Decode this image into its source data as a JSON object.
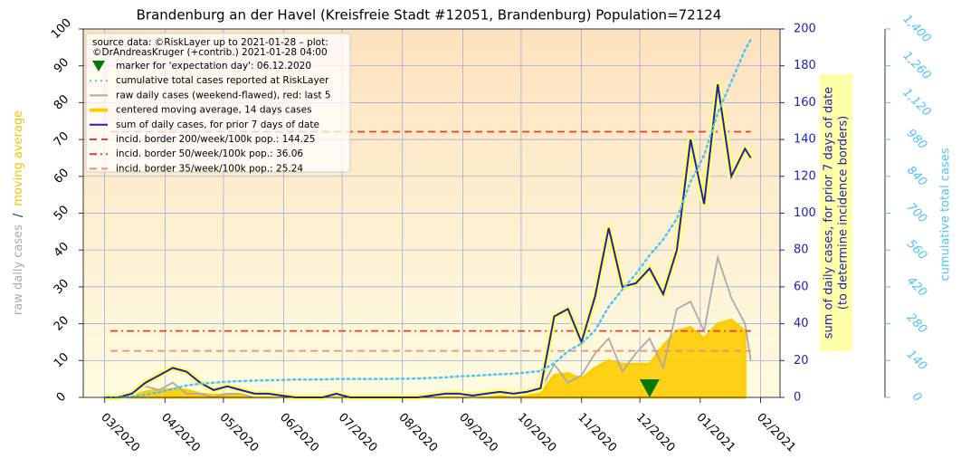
{
  "chart_data": {
    "type": "line",
    "title": "Brandenburg an der Havel (Kreisfreie Stadt #12051, Brandenburg) Population=72124",
    "ylabel": {
      "raw": "raw daily cases",
      "sep": "/",
      "ma": "moving average"
    },
    "y2label": [
      "sum of daily cases, for prior 7 days of date",
      "(to determine incidence borders)"
    ],
    "y3label": "cumulative total cases",
    "legend_note": [
      "source data: ©RiskLayer up to 2021-01-28 – plot:",
      "©DrAndreasKruger (+contrib.) 2021-01-28 04:00"
    ],
    "legend": "upper left",
    "grid": true,
    "xlim": [
      "2020-02-19",
      "2021-02-11"
    ],
    "xticks": [
      {
        "value": "2020-03-01",
        "label": "03/2020"
      },
      {
        "value": "2020-04-01",
        "label": "04/2020"
      },
      {
        "value": "2020-05-01",
        "label": "05/2020"
      },
      {
        "value": "2020-06-01",
        "label": "06/2020"
      },
      {
        "value": "2020-07-01",
        "label": "07/2020"
      },
      {
        "value": "2020-08-01",
        "label": "08/2020"
      },
      {
        "value": "2020-09-01",
        "label": "09/2020"
      },
      {
        "value": "2020-10-01",
        "label": "10/2020"
      },
      {
        "value": "2020-11-01",
        "label": "11/2020"
      },
      {
        "value": "2020-12-01",
        "label": "12/2020"
      },
      {
        "value": "2021-01-01",
        "label": "01/2021"
      },
      {
        "value": "2021-02-01",
        "label": "02/2021"
      }
    ],
    "ylim": [
      0,
      100
    ],
    "yticks": [
      0,
      10,
      20,
      30,
      40,
      50,
      60,
      70,
      80,
      90,
      100
    ],
    "y2lim": [
      0,
      200
    ],
    "y2ticks": [
      0,
      20,
      40,
      60,
      80,
      100,
      120,
      140,
      160,
      180,
      200
    ],
    "y3lim": [
      0,
      1400
    ],
    "y3ticks": [
      0,
      140,
      280,
      420,
      560,
      700,
      840,
      980,
      {
        "value": 1120,
        "label": "1,120"
      },
      {
        "value": 1260,
        "label": "1,260"
      },
      {
        "value": 1400,
        "label": "1,400"
      }
    ],
    "x": [
      "2020-03-01",
      "2020-03-08",
      "2020-03-15",
      "2020-03-22",
      "2020-03-29",
      "2020-04-05",
      "2020-04-12",
      "2020-04-19",
      "2020-04-26",
      "2020-05-03",
      "2020-05-10",
      "2020-05-17",
      "2020-05-24",
      "2020-05-31",
      "2020-06-07",
      "2020-06-14",
      "2020-06-21",
      "2020-06-28",
      "2020-07-05",
      "2020-07-12",
      "2020-07-19",
      "2020-07-26",
      "2020-08-02",
      "2020-08-09",
      "2020-08-16",
      "2020-08-23",
      "2020-08-30",
      "2020-09-06",
      "2020-09-13",
      "2020-09-20",
      "2020-09-27",
      "2020-10-04",
      "2020-10-11",
      "2020-10-18",
      "2020-10-25",
      "2020-11-01",
      "2020-11-08",
      "2020-11-15",
      "2020-11-22",
      "2020-11-29",
      "2020-12-06",
      "2020-12-13",
      "2020-12-20",
      "2020-12-27",
      "2021-01-03",
      "2021-01-10",
      "2021-01-17",
      "2021-01-24",
      "2021-01-27"
    ],
    "series": [
      {
        "name": "marker for 'expectation day': 06.12.2020",
        "style": "marker",
        "axis": "y",
        "color": "#007a00",
        "x": [
          "2020-12-06"
        ],
        "values": [
          0
        ]
      },
      {
        "name": "cumulative total cases reported at RiskLayer",
        "style": "dotted",
        "axis": "y3",
        "color": "#4fc3f7",
        "values": [
          0,
          0,
          3,
          10,
          20,
          32,
          45,
          52,
          56,
          60,
          62,
          64,
          65,
          66,
          68,
          68,
          68,
          70,
          70,
          70,
          70,
          70,
          71,
          72,
          74,
          76,
          80,
          82,
          85,
          88,
          90,
          95,
          100,
          130,
          175,
          205,
          255,
          345,
          410,
          470,
          540,
          600,
          680,
          820,
          920,
          1080,
          1200,
          1320,
          1360
        ]
      },
      {
        "name": "raw daily cases (weekend-flawed), red: last 5",
        "style": "line",
        "axis": "y",
        "color": "#aaaaaa",
        "values": [
          0,
          0,
          1,
          3,
          2,
          4,
          1,
          1,
          0,
          1,
          1,
          0,
          1,
          0,
          0,
          0,
          0,
          1,
          0,
          0,
          0,
          0,
          0,
          0,
          0,
          1,
          0,
          0,
          1,
          1,
          0,
          1,
          2,
          9,
          4,
          6,
          12,
          16,
          7,
          12,
          16,
          8,
          24,
          26,
          18,
          38,
          27,
          20,
          10
        ]
      },
      {
        "name": "centered moving average, 14 days cases",
        "style": "area",
        "axis": "y",
        "color": "#ffcc00",
        "values": [
          0,
          0,
          0.5,
          1.5,
          2,
          2.2,
          2,
          1,
          0.6,
          0.8,
          0.6,
          0.3,
          0.3,
          0.2,
          0,
          0,
          0,
          0.3,
          0,
          0,
          0,
          0,
          0,
          0,
          0.2,
          0.3,
          0.3,
          0.2,
          0.3,
          0.4,
          0.3,
          0.4,
          1,
          6,
          6.5,
          5,
          8,
          10,
          9,
          9,
          9,
          14,
          18,
          19,
          16,
          20,
          21,
          18,
          null
        ]
      },
      {
        "name": "sum of daily cases, for prior 7 days of date",
        "style": "halo",
        "axis": "y2",
        "color": "#1f1fb4",
        "values": [
          0,
          0,
          2,
          8,
          12,
          16,
          14,
          8,
          4,
          6,
          4,
          2,
          2,
          1,
          0,
          0,
          0,
          2,
          0,
          0,
          0,
          0,
          0,
          0,
          1,
          2,
          2,
          1,
          2,
          3,
          2,
          3,
          5,
          44,
          48,
          30,
          55,
          92,
          60,
          62,
          70,
          56,
          80,
          140,
          105,
          170,
          120,
          135,
          130
        ]
      },
      {
        "name": "incid. border 200/week/100k pop.: 144.25",
        "style": "dashed",
        "axis": "y2",
        "color": "#e0402f",
        "x": [
          "2020-03-04",
          "2021-01-27"
        ],
        "values": [
          144.25,
          144.25
        ]
      },
      {
        "name": "incid. border 50/week/100k pop.: 36.06",
        "style": "dashdot",
        "axis": "y2",
        "color": "#e0402f",
        "x": [
          "2020-03-04",
          "2021-01-27"
        ],
        "values": [
          36.06,
          36.06
        ]
      },
      {
        "name": "incid. border 35/week/100k pop.: 25.24",
        "style": "dashed",
        "axis": "y2",
        "color": "#f08a80",
        "x": [
          "2020-03-04",
          "2021-01-27"
        ],
        "values": [
          25.24,
          25.24
        ]
      }
    ]
  }
}
